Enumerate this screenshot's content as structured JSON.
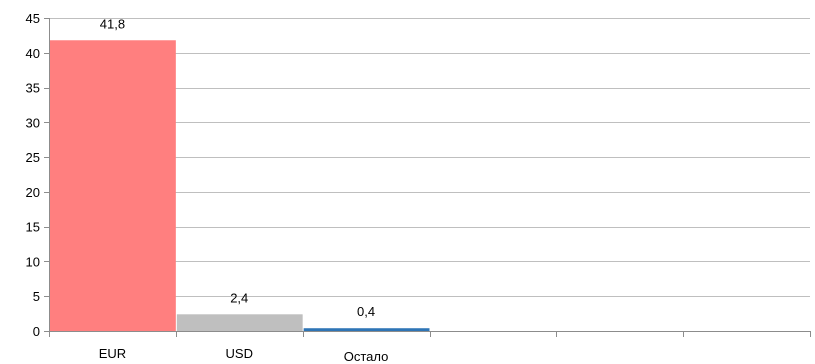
{
  "chart_data": {
    "type": "bar",
    "categories": [
      "EUR",
      "USD",
      "Остало",
      "",
      "",
      ""
    ],
    "values": [
      41.8,
      2.4,
      0.4,
      null,
      null,
      null
    ],
    "value_labels": [
      "41,8",
      "2,4",
      "0,4",
      "",
      "",
      ""
    ],
    "bar_colors": [
      "#ff7f7f",
      "#bfbfbf",
      "#2e75b6",
      null,
      null,
      null
    ],
    "ylim": [
      0,
      45
    ],
    "yticks": [
      0,
      5,
      10,
      15,
      20,
      25,
      30,
      35,
      40,
      45
    ],
    "ytick_labels": [
      "0",
      "5",
      "10",
      "15",
      "20",
      "25",
      "30",
      "35",
      "40",
      "45"
    ],
    "grid": true,
    "gridline_color": "#bfbfbf",
    "axis_color": "#8c8c8c",
    "title": "",
    "xlabel": "",
    "ylabel": ""
  }
}
